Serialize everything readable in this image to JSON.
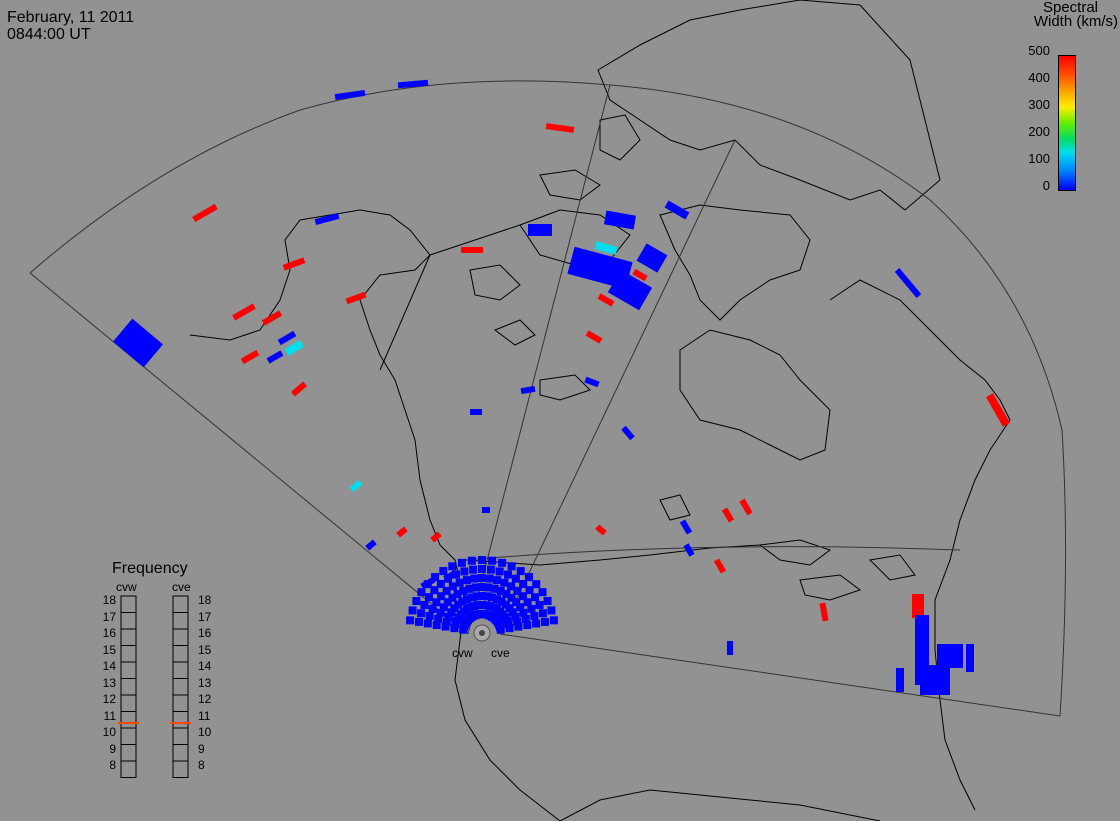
{
  "header": {
    "date": "February, 11 2011",
    "time": "0844:00 UT"
  },
  "colorbar": {
    "title_line1": "Spectral",
    "title_line2": "Width (km/s)",
    "ticks": [
      "500",
      "400",
      "300",
      "200",
      "100",
      "0"
    ],
    "colors": [
      "#ff0000",
      "#ff9900",
      "#ffee00",
      "#66ee00",
      "#00ddee",
      "#0000ff"
    ]
  },
  "frequency_panel": {
    "title": "Frequency",
    "radars": [
      "cvw",
      "cve"
    ],
    "ticks": [
      "18",
      "17",
      "16",
      "15",
      "14",
      "13",
      "12",
      "11",
      "10",
      "9",
      "8"
    ],
    "marker_value_mhz": 10.8,
    "marker_color": "#ff4400"
  },
  "radar_labels": [
    "cvw",
    "cve"
  ],
  "colors": {
    "background": "#929292",
    "low_width": "#0000ff",
    "high_width": "#ff0000",
    "medium_width": "#00ddee"
  }
}
